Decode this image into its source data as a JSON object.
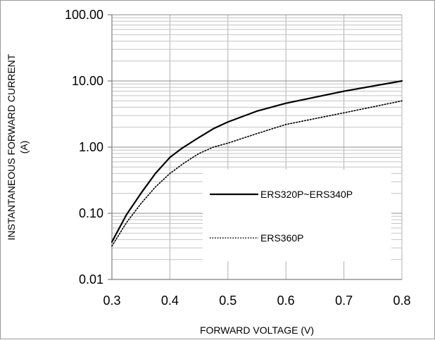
{
  "chart_data": {
    "type": "line",
    "title": "",
    "xlabel": "FORWARD VOLTAGE (V)",
    "ylabel_line1": "INSTANTANEOUS FORWARD CURRENT",
    "ylabel_line2": "(A)",
    "xlim": [
      0.3,
      0.8
    ],
    "ylim": [
      0.01,
      100
    ],
    "yscale": "log",
    "grid": true,
    "legend": "center-right",
    "x_ticks": [
      0.3,
      0.4,
      0.5,
      0.6,
      0.7,
      0.8
    ],
    "x_tick_labels": [
      "0.3",
      "0.4",
      "0.5",
      "0.6",
      "0.7",
      "0.8"
    ],
    "y_ticks": [
      0.01,
      0.1,
      1,
      10,
      100
    ],
    "y_tick_labels": [
      "0.01",
      "0.10",
      "1.00",
      "10.00",
      "100.00"
    ],
    "series": [
      {
        "name": "ERS320P~ERS340P",
        "style": "solid",
        "color": "#000000",
        "x": [
          0.3,
          0.325,
          0.35,
          0.375,
          0.4,
          0.42,
          0.45,
          0.475,
          0.5,
          0.55,
          0.6,
          0.7,
          0.8
        ],
        "y": [
          0.037,
          0.095,
          0.2,
          0.4,
          0.7,
          0.95,
          1.4,
          1.9,
          2.4,
          3.5,
          4.6,
          7.0,
          10.0
        ]
      },
      {
        "name": "ERS360P",
        "style": "dotted",
        "color": "#000000",
        "x": [
          0.3,
          0.325,
          0.35,
          0.375,
          0.4,
          0.425,
          0.45,
          0.475,
          0.5,
          0.55,
          0.6,
          0.7,
          0.8
        ],
        "y": [
          0.032,
          0.072,
          0.14,
          0.25,
          0.4,
          0.58,
          0.8,
          1.0,
          1.15,
          1.6,
          2.2,
          3.3,
          5.0
        ]
      }
    ]
  }
}
